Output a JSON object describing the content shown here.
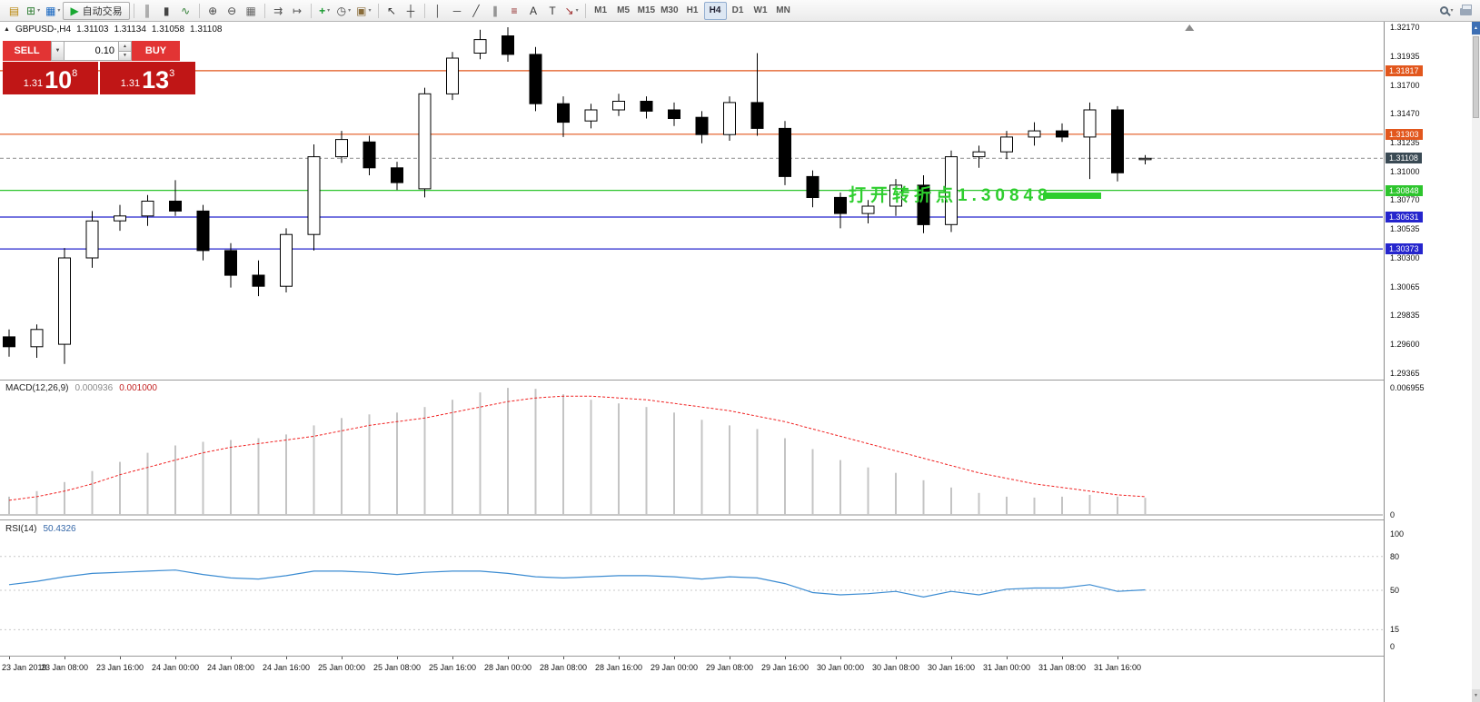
{
  "toolbar": {
    "groups": [
      {
        "items": [
          {
            "name": "new-order-icon",
            "glyph": "▤",
            "color": "#b8860b"
          },
          {
            "name": "new-chart-icon",
            "glyph": "⊞",
            "color": "#2e7d32",
            "caret": true
          },
          {
            "name": "profiles-icon",
            "glyph": "▦",
            "color": "#1565c0",
            "caret": true
          },
          {
            "name": "autotrading-button",
            "glyph": "▶",
            "color": "#19a832",
            "label": "自动交易"
          }
        ]
      },
      {
        "items": [
          {
            "name": "bar-chart-icon",
            "glyph": "║",
            "color": "#555555"
          },
          {
            "name": "candlestick-chart-icon",
            "glyph": "▮",
            "color": "#444444"
          },
          {
            "name": "line-chart-icon",
            "glyph": "∿",
            "color": "#2e7d32"
          }
        ]
      },
      {
        "items": [
          {
            "name": "zoom-in-icon",
            "glyph": "⊕",
            "color": "#444444"
          },
          {
            "name": "zoom-out-icon",
            "glyph": "⊖",
            "color": "#444444"
          },
          {
            "name": "tile-windows-icon",
            "glyph": "▦",
            "color": "#666666"
          }
        ]
      },
      {
        "items": [
          {
            "name": "auto-scroll-icon",
            "glyph": "⇉",
            "color": "#555555"
          },
          {
            "name": "chart-shift-icon",
            "glyph": "↦",
            "color": "#555555"
          }
        ]
      },
      {
        "items": [
          {
            "name": "indicators-icon",
            "glyph": "+",
            "color": "#169a2e",
            "caret": true
          },
          {
            "name": "periods-icon",
            "glyph": "◷",
            "color": "#444444",
            "caret": true
          },
          {
            "name": "templates-icon",
            "glyph": "▣",
            "color": "#8a6d3b",
            "caret": true
          }
        ]
      },
      {
        "items": [
          {
            "name": "cursor-icon",
            "glyph": "↖",
            "color": "#333333"
          },
          {
            "name": "crosshair-icon",
            "glyph": "┼",
            "color": "#333333"
          }
        ]
      },
      {
        "items": [
          {
            "name": "vertical-line-icon",
            "glyph": "│",
            "color": "#444444"
          },
          {
            "name": "horizontal-line-icon",
            "glyph": "─",
            "color": "#444444"
          },
          {
            "name": "trendline-icon",
            "glyph": "╱",
            "color": "#444444"
          },
          {
            "name": "channel-icon",
            "glyph": "∥",
            "color": "#444444"
          },
          {
            "name": "fibonacci-icon",
            "glyph": "≡",
            "color": "#8b2020"
          },
          {
            "name": "text-icon",
            "glyph": "A",
            "color": "#333333"
          },
          {
            "name": "label-icon",
            "glyph": "T",
            "color": "#333333"
          },
          {
            "name": "arrows-icon",
            "glyph": "↘",
            "color": "#a03030",
            "caret": true
          }
        ]
      }
    ],
    "timeframes": {
      "items": [
        "M1",
        "M5",
        "M15",
        "M30",
        "H1",
        "H4",
        "D1",
        "W1",
        "MN"
      ],
      "active": "H4"
    }
  },
  "trade_panel": {
    "sell_label": "SELL",
    "buy_label": "BUY",
    "volume": "0.10",
    "sell_price": {
      "prefix": "1.31",
      "big": "10",
      "sup": "8"
    },
    "buy_price": {
      "prefix": "1.31",
      "big": "13",
      "sup": "3"
    },
    "glyphs": {
      "dropdown": "▼",
      "spin_up": "▲",
      "spin_down": "▼",
      "collapse": "▲",
      "scroll_up": "▲",
      "scroll_down": "▼"
    }
  },
  "chart_data": [
    {
      "type": "candlestick",
      "title": "GBPUSD-,H4",
      "header": {
        "symbol_period": "GBPUSD-,H4",
        "open": "1.31103",
        "high": "1.31134",
        "low": "1.31058",
        "close": "1.31108"
      },
      "ylim": [
        1.29365,
        1.3217
      ],
      "y_ticks": [
        "1.32170",
        "1.31935",
        "1.31700",
        "1.31470",
        "1.31235",
        "1.31000",
        "1.30770",
        "1.30535",
        "1.30300",
        "1.30065",
        "1.29835",
        "1.29600",
        "1.29365"
      ],
      "lines": [
        {
          "label": "1.31817",
          "value": 1.31817,
          "badge_color": "#e2571d",
          "line_color": "#e2571d",
          "line_style": "solid"
        },
        {
          "label": "1.31303",
          "value": 1.31303,
          "badge_color": "#e2571d",
          "line_color": "#e2571d",
          "line_style": "solid"
        },
        {
          "label": "1.31108",
          "value": 1.31108,
          "badge_color": "#3a4a54",
          "line_color": "#9a9a9a",
          "line_style": "dashed"
        },
        {
          "label": "1.30848",
          "value": 1.30848,
          "badge_color": "#2dc52d",
          "line_color": "#2dc52d",
          "line_style": "solid"
        },
        {
          "label": "1.30631",
          "value": 1.30631,
          "badge_color": "#2525cd",
          "line_color": "#2525cd",
          "line_style": "solid"
        },
        {
          "label": "1.30373",
          "value": 1.30373,
          "badge_color": "#2525cd",
          "line_color": "#2525cd",
          "line_style": "solid"
        }
      ],
      "up_color": "#ffffff",
      "down_color": "#000000",
      "candles": [
        [
          1.2966,
          1.2972,
          1.295,
          1.2958
        ],
        [
          1.2958,
          1.2976,
          1.2949,
          1.2972
        ],
        [
          1.296,
          1.3038,
          1.2944,
          1.303
        ],
        [
          1.303,
          1.3068,
          1.3022,
          1.306
        ],
        [
          1.306,
          1.3073,
          1.3052,
          1.3064
        ],
        [
          1.3064,
          1.3081,
          1.3056,
          1.3076
        ],
        [
          1.3076,
          1.3093,
          1.3064,
          1.3068
        ],
        [
          1.3068,
          1.3073,
          1.3028,
          1.3036
        ],
        [
          1.3036,
          1.3042,
          1.3006,
          1.3016
        ],
        [
          1.3016,
          1.3028,
          1.2999,
          1.3007
        ],
        [
          1.3007,
          1.3054,
          1.3002,
          1.3049
        ],
        [
          1.3049,
          1.3122,
          1.3036,
          1.3112
        ],
        [
          1.3112,
          1.3133,
          1.3107,
          1.3126
        ],
        [
          1.3124,
          1.3129,
          1.3097,
          1.3103
        ],
        [
          1.3103,
          1.3108,
          1.3085,
          1.3091
        ],
        [
          1.3086,
          1.3168,
          1.3079,
          1.3163
        ],
        [
          1.3163,
          1.3197,
          1.3158,
          1.3192
        ],
        [
          1.3196,
          1.3215,
          1.3191,
          1.3207
        ],
        [
          1.321,
          1.3217,
          1.3189,
          1.3195
        ],
        [
          1.3195,
          1.3201,
          1.3149,
          1.3155
        ],
        [
          1.3155,
          1.3161,
          1.3128,
          1.314
        ],
        [
          1.3141,
          1.3155,
          1.3135,
          1.315
        ],
        [
          1.315,
          1.3163,
          1.3145,
          1.3157
        ],
        [
          1.3157,
          1.3161,
          1.3143,
          1.3149
        ],
        [
          1.315,
          1.3156,
          1.3137,
          1.3143
        ],
        [
          1.3144,
          1.3149,
          1.3123,
          1.313
        ],
        [
          1.313,
          1.3161,
          1.3125,
          1.3156
        ],
        [
          1.3156,
          1.3196,
          1.3129,
          1.3135
        ],
        [
          1.3135,
          1.3141,
          1.3089,
          1.3096
        ],
        [
          1.3096,
          1.3101,
          1.3071,
          1.3079
        ],
        [
          1.3079,
          1.3083,
          1.3054,
          1.3066
        ],
        [
          1.3066,
          1.3077,
          1.3058,
          1.3072
        ],
        [
          1.3072,
          1.3094,
          1.3064,
          1.3089
        ],
        [
          1.3089,
          1.3097,
          1.305,
          1.3057
        ],
        [
          1.3057,
          1.3117,
          1.3051,
          1.3112
        ],
        [
          1.3112,
          1.3121,
          1.3103,
          1.3116
        ],
        [
          1.3116,
          1.3133,
          1.311,
          1.3128
        ],
        [
          1.3128,
          1.314,
          1.3121,
          1.3133
        ],
        [
          1.3133,
          1.3139,
          1.3124,
          1.3128
        ],
        [
          1.3128,
          1.3156,
          1.3094,
          1.315
        ],
        [
          1.315,
          1.3153,
          1.3092,
          1.3099
        ],
        [
          1.31103,
          1.31134,
          1.31058,
          1.31108
        ]
      ],
      "annotation": {
        "text": "打开转折点1.30848",
        "color": "#2ece2e",
        "price": 1.30848,
        "text_x_index": 30.3,
        "bar_x_from": 37.3,
        "bar_x_to": 39.4
      },
      "shift_marker_x_index": 42.6
    },
    {
      "type": "bar",
      "name": "MACD",
      "label": "MACD(12,26,9)",
      "value_main": "0.000936",
      "value_signal": "0.001000",
      "ylim": [
        0,
        0.006955
      ],
      "y_ticks": [
        "0.006955",
        "0"
      ],
      "histogram_color": "#c4c4c4",
      "signal_color": "#f02020",
      "histogram": [
        0.001,
        0.0013,
        0.0018,
        0.0024,
        0.0029,
        0.0034,
        0.0038,
        0.004,
        0.0041,
        0.0042,
        0.0044,
        0.0049,
        0.0053,
        0.0055,
        0.0056,
        0.0059,
        0.0063,
        0.0067,
        0.00695,
        0.0069,
        0.0066,
        0.0063,
        0.0061,
        0.0059,
        0.0056,
        0.0052,
        0.0049,
        0.0047,
        0.0042,
        0.0036,
        0.003,
        0.0026,
        0.0023,
        0.0019,
        0.0015,
        0.0012,
        0.001,
        0.00095,
        0.001,
        0.0011,
        0.001,
        0.000936
      ],
      "signal": [
        0.0008,
        0.001,
        0.0013,
        0.0017,
        0.0022,
        0.0026,
        0.003,
        0.0034,
        0.0037,
        0.0039,
        0.0041,
        0.0043,
        0.0046,
        0.0049,
        0.0051,
        0.0053,
        0.0056,
        0.0059,
        0.0062,
        0.0064,
        0.0065,
        0.0065,
        0.0064,
        0.0063,
        0.0061,
        0.0059,
        0.0057,
        0.0054,
        0.0051,
        0.0047,
        0.0043,
        0.0039,
        0.0035,
        0.0031,
        0.0027,
        0.0023,
        0.002,
        0.0017,
        0.0015,
        0.0013,
        0.0011,
        0.001
      ]
    },
    {
      "type": "line",
      "name": "RSI",
      "label": "RSI(14)",
      "value": "50.4326",
      "ylim": [
        0,
        100
      ],
      "y_ticks": [
        "100",
        "80",
        "50",
        "15",
        "0"
      ],
      "levels": [
        80,
        50,
        15
      ],
      "line_color": "#3c8cd2",
      "values": [
        55,
        58,
        62,
        65,
        66,
        67,
        68,
        64,
        61,
        60,
        63,
        67,
        67,
        66,
        64,
        66,
        67,
        67,
        65,
        62,
        61,
        62,
        63,
        63,
        62,
        60,
        62,
        61,
        56,
        48,
        46,
        47,
        49,
        44,
        49,
        46,
        51,
        52,
        52,
        55,
        49,
        50.4
      ]
    }
  ],
  "time_axis": {
    "labels": [
      "23 Jan 2019",
      "23 Jan 08:00",
      "23 Jan 16:00",
      "24 Jan 00:00",
      "24 Jan 08:00",
      "24 Jan 16:00",
      "25 Jan 00:00",
      "25 Jan 08:00",
      "25 Jan 16:00",
      "28 Jan 00:00",
      "28 Jan 08:00",
      "28 Jan 16:00",
      "29 Jan 00:00",
      "29 Jan 08:00",
      "29 Jan 16:00",
      "30 Jan 00:00",
      "30 Jan 08:00",
      "30 Jan 16:00",
      "31 Jan 00:00",
      "31 Jan 08:00",
      "31 Jan 16:00"
    ]
  }
}
